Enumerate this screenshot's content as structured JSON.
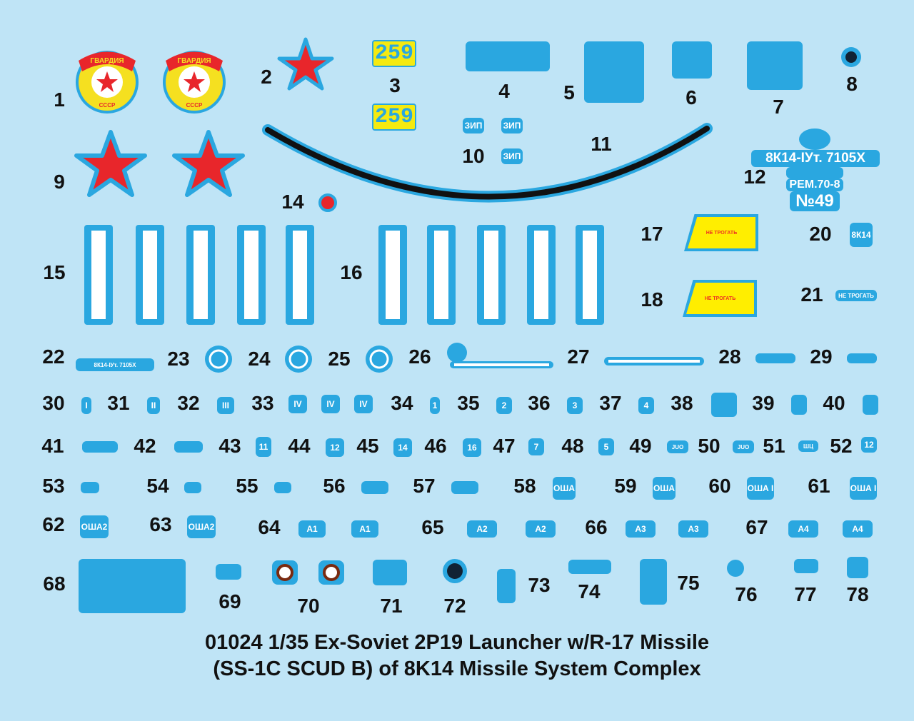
{
  "title": {
    "line1": "01024   1/35   Ex-Soviet 2P19 Launcher w/R-17 Missile",
    "line2": "(SS-1C SCUD B) of 8K14 Missile System Complex"
  },
  "colors": {
    "background": "#bfe4f6",
    "decal_blue": "#2aa7e0",
    "yellow": "#ffee00",
    "red": "#e8262b",
    "black": "#111111"
  },
  "numbers": [
    "1",
    "2",
    "3",
    "4",
    "5",
    "6",
    "7",
    "8",
    "9",
    "10",
    "11",
    "12",
    "14",
    "15",
    "16",
    "17",
    "18",
    "20",
    "21",
    "22",
    "23",
    "24",
    "25",
    "26",
    "27",
    "28",
    "29",
    "30",
    "31",
    "32",
    "33",
    "34",
    "35",
    "36",
    "37",
    "38",
    "39",
    "40",
    "41",
    "42",
    "43",
    "44",
    "45",
    "46",
    "47",
    "48",
    "49",
    "50",
    "51",
    "52",
    "53",
    "54",
    "55",
    "56",
    "57",
    "58",
    "59",
    "60",
    "61",
    "62",
    "63",
    "64",
    "65",
    "66",
    "67",
    "68",
    "69",
    "70",
    "71",
    "72",
    "73",
    "74",
    "75",
    "76",
    "77",
    "78"
  ],
  "decals": {
    "guards_badge_text": "ГВАРДИЯ",
    "guards_badge_sub": "СССР",
    "tactical_number": "259",
    "zip": "ЗИП",
    "unit_code": "8К14-IУт. 7105X",
    "rem": "РЕМ.70-8",
    "serial": "№49",
    "do_not_touch": "НЕ ТРОГАТЬ",
    "small_8k14": "8К14",
    "roman": [
      "I",
      "II",
      "III",
      "IV",
      "IV",
      "IV"
    ],
    "digits": [
      "1",
      "2",
      "3",
      "4"
    ],
    "digits2": [
      "11",
      "12",
      "14",
      "16",
      "7",
      "5",
      "12"
    ],
    "codes": [
      "JUO",
      "JUO",
      "ШЦ",
      "ОША",
      "ОША",
      "ОША I",
      "ОША I",
      "ОША2",
      "ОША2"
    ],
    "a_marks": [
      "A1",
      "A1",
      "A2",
      "A2",
      "A3",
      "A3",
      "A4",
      "A4"
    ]
  }
}
